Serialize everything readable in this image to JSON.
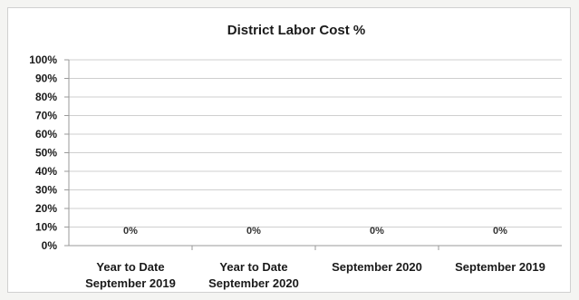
{
  "chart_data": {
    "type": "bar",
    "title": "District Labor Cost %",
    "categories": [
      [
        "Year to Date",
        "September 2019"
      ],
      [
        "Year to Date",
        "September 2020"
      ],
      [
        "September 2020"
      ],
      [
        "September 2019"
      ]
    ],
    "values": [
      0,
      0,
      0,
      0
    ],
    "data_labels": [
      "0%",
      "0%",
      "0%",
      "0%"
    ],
    "yticks": [
      "0%",
      "10%",
      "20%",
      "30%",
      "40%",
      "50%",
      "60%",
      "70%",
      "80%",
      "90%",
      "100%"
    ],
    "ylim": [
      0,
      100
    ],
    "grid": true,
    "legend": "none",
    "colors": {
      "bar": "#4f81bd",
      "label": "#333333"
    }
  }
}
